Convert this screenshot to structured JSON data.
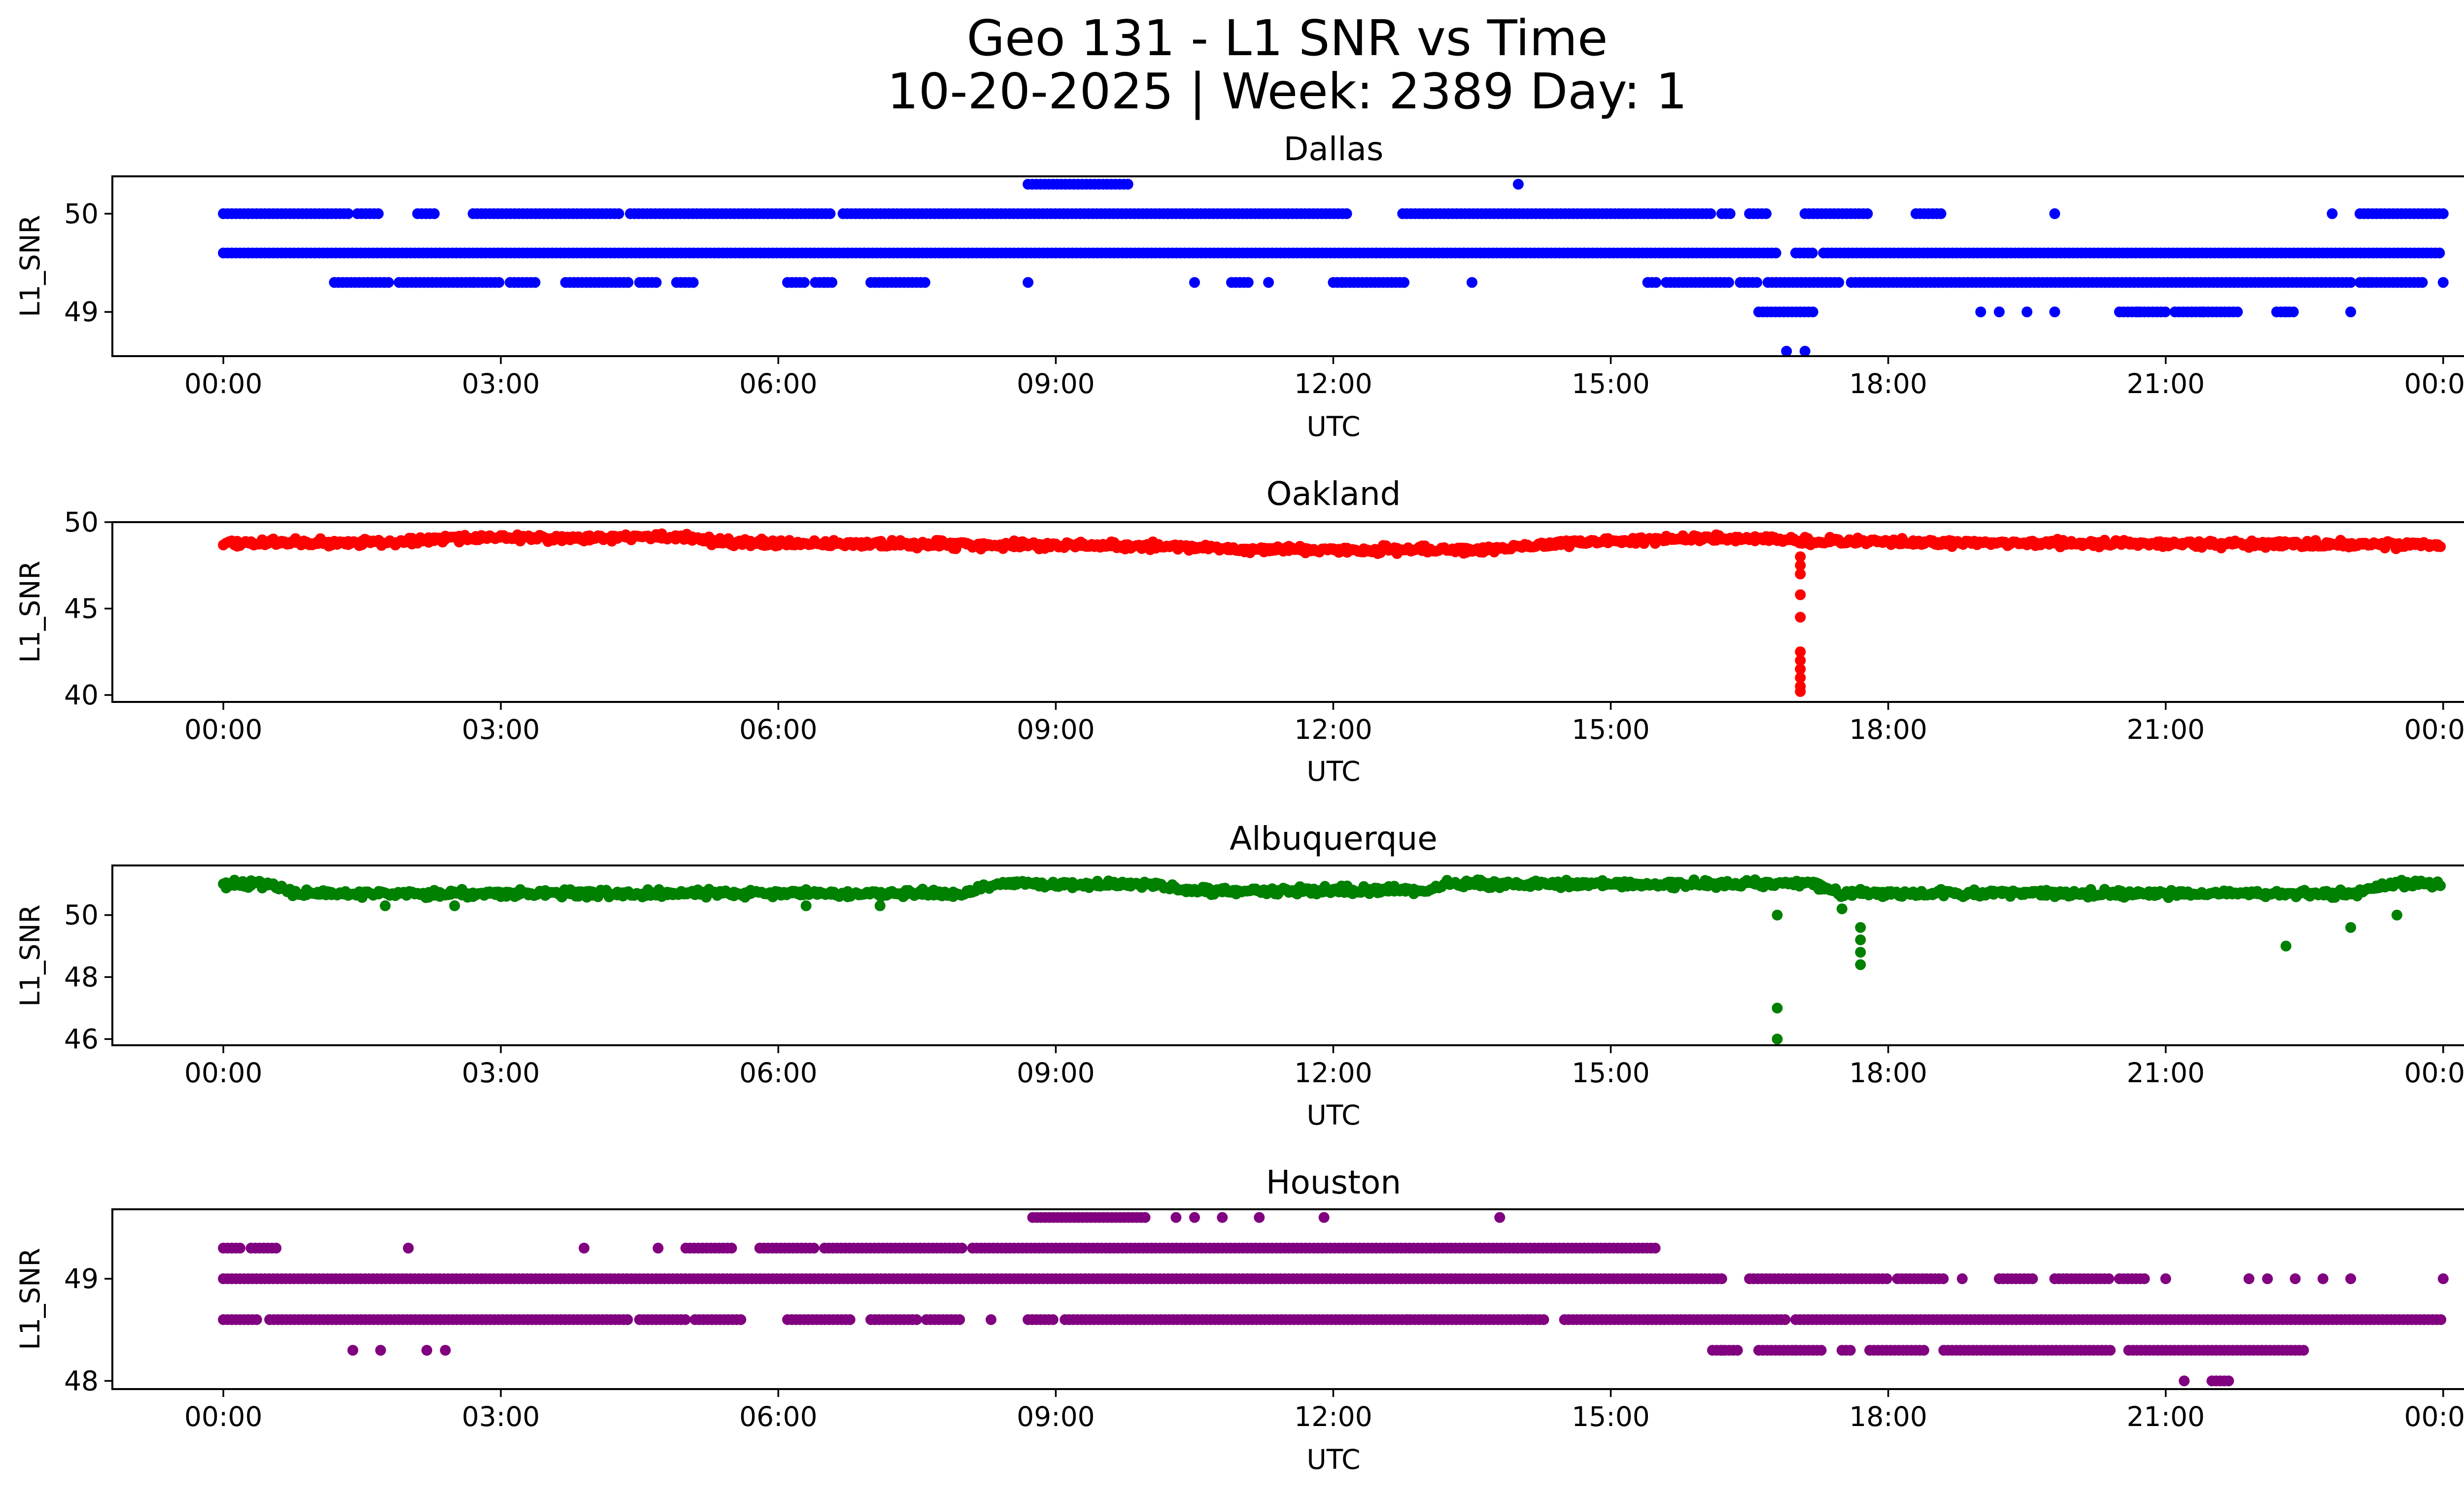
{
  "figure": {
    "title_line1": "Geo 131 - L1 SNR vs Time",
    "title_line2": "10-20-2025 | Week: 2389 Day: 1"
  },
  "chart_data": [
    {
      "type": "scatter",
      "title": "Dallas",
      "xlabel": "UTC",
      "ylabel": "L1_SNR",
      "color": "#0000ff",
      "x_unit": "hours",
      "xlim": [
        -1.2,
        25.2
      ],
      "ylim": [
        48.55,
        50.38
      ],
      "xticks": [
        0,
        3,
        6,
        9,
        12,
        15,
        18,
        21,
        24
      ],
      "xtick_labels": [
        "00:00",
        "03:00",
        "06:00",
        "09:00",
        "12:00",
        "15:00",
        "18:00",
        "21:00",
        "00:00"
      ],
      "yticks": [
        49,
        50
      ],
      "ytick_labels": [
        "49",
        "50"
      ],
      "series": [
        {
          "y": 50.0,
          "segments": [
            [
              0,
              1.35
            ],
            [
              1.45,
              1.7
            ],
            [
              2.1,
              2.3
            ],
            [
              2.7,
              4.3
            ],
            [
              4.4,
              6.6
            ],
            [
              6.7,
              12.15
            ],
            [
              12.75,
              16.1
            ],
            [
              16.2,
              16.3
            ],
            [
              16.5,
              16.7
            ],
            [
              17.1,
              17.8
            ],
            [
              18.3,
              18.6
            ]
          ],
          "points": [
            19.8,
            22.8
          ],
          "runs_end": [
            23.1,
            24.0
          ]
        },
        {
          "y": 49.6,
          "segments": [
            [
              0,
              16.8
            ],
            [
              17.0,
              17.2
            ],
            [
              17.3,
              24.0
            ]
          ],
          "points": []
        },
        {
          "y": 49.3,
          "segments": [
            [
              1.2,
              1.8
            ],
            [
              1.9,
              3.0
            ],
            [
              3.1,
              3.4
            ],
            [
              3.7,
              4.4
            ],
            [
              4.5,
              4.7
            ],
            [
              4.9,
              5.1
            ],
            [
              6.1,
              6.3
            ],
            [
              6.4,
              6.6
            ],
            [
              7.0,
              7.6
            ],
            [
              10.9,
              11.1
            ],
            [
              12.0,
              12.8
            ],
            [
              15.4,
              15.5
            ],
            [
              15.6,
              16.3
            ],
            [
              16.4,
              16.6
            ],
            [
              16.7,
              17.5
            ],
            [
              17.6,
              23.0
            ],
            [
              23.1,
              23.8
            ]
          ],
          "points": [
            2.7,
            6.5,
            8.7,
            10.5,
            11.3,
            12.1,
            13.5,
            23.2,
            24.0
          ]
        },
        {
          "y": 49.0,
          "segments": [
            [
              16.6,
              17.2
            ],
            [
              20.5,
              21.0
            ],
            [
              21.1,
              21.8
            ],
            [
              22.2,
              22.4
            ]
          ],
          "points": [
            19.0,
            19.2,
            19.5,
            19.8,
            20.7,
            21.4,
            22.3,
            23.0
          ]
        },
        {
          "y": 48.6,
          "segments": [],
          "points": [
            16.9,
            17.1
          ]
        },
        {
          "y": 50.3,
          "segments": [
            [
              8.7,
              9.8
            ]
          ],
          "points": [
            14.0
          ]
        }
      ]
    },
    {
      "type": "scatter",
      "title": "Oakland",
      "xlabel": "UTC",
      "ylabel": "L1_SNR",
      "color": "#ff0000",
      "x_unit": "hours",
      "xlim": [
        -1.2,
        25.2
      ],
      "ylim": [
        39.6,
        50.0
      ],
      "xticks": [
        0,
        3,
        6,
        9,
        12,
        15,
        18,
        21,
        24
      ],
      "xtick_labels": [
        "00:00",
        "03:00",
        "06:00",
        "09:00",
        "12:00",
        "15:00",
        "18:00",
        "21:00",
        "00:00"
      ],
      "yticks": [
        40,
        45,
        50
      ],
      "ytick_labels": [
        "40",
        "45",
        "50"
      ],
      "baseline": [
        [
          0,
          48.8
        ],
        [
          1.5,
          48.8
        ],
        [
          2.5,
          49.1
        ],
        [
          5.0,
          49.1
        ],
        [
          5.5,
          48.8
        ],
        [
          8.0,
          48.7
        ],
        [
          10.5,
          48.6
        ],
        [
          11.0,
          48.4
        ],
        [
          13.5,
          48.4
        ],
        [
          14.5,
          48.8
        ],
        [
          16.0,
          49.1
        ],
        [
          17.0,
          48.9
        ],
        [
          19.0,
          48.8
        ],
        [
          24.0,
          48.7
        ]
      ],
      "dropout": {
        "x": 17.05,
        "values": [
          48.0,
          47.5,
          47.0,
          45.8,
          44.5,
          42.5,
          42.0,
          41.5,
          41.0,
          40.5,
          40.2
        ]
      }
    },
    {
      "type": "scatter",
      "title": "Albuquerque",
      "xlabel": "UTC",
      "ylabel": "L1_SNR",
      "color": "#008000",
      "x_unit": "hours",
      "xlim": [
        -1.2,
        25.2
      ],
      "ylim": [
        45.8,
        51.6
      ],
      "xticks": [
        0,
        3,
        6,
        9,
        12,
        15,
        18,
        21,
        24
      ],
      "xtick_labels": [
        "00:00",
        "03:00",
        "06:00",
        "09:00",
        "12:00",
        "15:00",
        "18:00",
        "21:00",
        "00:00"
      ],
      "yticks": [
        46,
        48,
        50
      ],
      "ytick_labels": [
        "46",
        "48",
        "50"
      ],
      "baseline": [
        [
          0,
          51.0
        ],
        [
          0.5,
          51.0
        ],
        [
          0.8,
          50.7
        ],
        [
          8.0,
          50.7
        ],
        [
          8.3,
          51.0
        ],
        [
          10.0,
          51.0
        ],
        [
          10.5,
          50.8
        ],
        [
          13.0,
          50.8
        ],
        [
          13.2,
          51.0
        ],
        [
          17.2,
          51.0
        ],
        [
          17.5,
          50.7
        ],
        [
          23.0,
          50.7
        ],
        [
          23.4,
          51.0
        ],
        [
          24.0,
          51.0
        ]
      ],
      "outliers": [
        [
          16.8,
          50.0
        ],
        [
          16.8,
          47.0
        ],
        [
          16.8,
          46.0
        ],
        [
          17.5,
          50.2
        ],
        [
          17.7,
          49.6
        ],
        [
          17.7,
          49.2
        ],
        [
          17.7,
          48.8
        ],
        [
          17.7,
          48.4
        ],
        [
          22.3,
          49.0
        ],
        [
          23.0,
          49.6
        ],
        [
          23.5,
          50.0
        ],
        [
          1.75,
          50.3
        ],
        [
          6.3,
          50.3
        ],
        [
          7.1,
          50.3
        ],
        [
          2.5,
          50.3
        ]
      ]
    },
    {
      "type": "scatter",
      "title": "Houston",
      "xlabel": "UTC",
      "ylabel": "L1_SNR",
      "color": "#800080",
      "x_unit": "hours",
      "xlim": [
        -1.2,
        25.2
      ],
      "ylim": [
        47.92,
        49.68
      ],
      "xticks": [
        0,
        3,
        6,
        9,
        12,
        15,
        18,
        21,
        24
      ],
      "xtick_labels": [
        "00:00",
        "03:00",
        "06:00",
        "09:00",
        "12:00",
        "15:00",
        "18:00",
        "21:00",
        "00:00"
      ],
      "yticks": [
        48,
        49
      ],
      "ytick_labels": [
        "48",
        "49"
      ],
      "series": [
        {
          "y": 49.6,
          "segments": [
            [
              8.75,
              10.0
            ]
          ],
          "points": [
            10.3,
            10.5,
            10.8,
            11.2,
            11.9,
            13.8
          ]
        },
        {
          "y": 49.3,
          "segments": [
            [
              0,
              0.2
            ],
            [
              0.3,
              0.6
            ],
            [
              5.0,
              5.5
            ],
            [
              5.8,
              6.4
            ],
            [
              6.5,
              8.0
            ],
            [
              8.1,
              15.5
            ]
          ],
          "points": [
            2.0,
            3.9,
            4.7
          ]
        },
        {
          "y": 49.0,
          "segments": [
            [
              0,
              16.2
            ],
            [
              16.5,
              18.0
            ],
            [
              18.1,
              18.6
            ],
            [
              19.2,
              19.6
            ],
            [
              19.8,
              20.4
            ],
            [
              20.5,
              20.8
            ]
          ],
          "points": [
            18.8,
            21.0,
            21.9,
            22.1,
            22.4,
            22.7,
            23.0,
            24.0
          ]
        },
        {
          "y": 48.6,
          "segments": [
            [
              0,
              0.4
            ],
            [
              0.5,
              4.4
            ],
            [
              4.5,
              5.0
            ],
            [
              5.1,
              5.6
            ],
            [
              6.1,
              6.8
            ],
            [
              7.0,
              7.5
            ],
            [
              7.6,
              8.0
            ],
            [
              8.7,
              9.0
            ],
            [
              9.1,
              14.3
            ],
            [
              14.5,
              16.9
            ],
            [
              17.0,
              24.0
            ]
          ],
          "points": [
            8.3,
            10.4,
            12.8,
            13.1,
            14.1
          ]
        },
        {
          "y": 48.3,
          "segments": [
            [
              16.1,
              16.4
            ],
            [
              16.6,
              17.3
            ],
            [
              17.5,
              17.6
            ],
            [
              17.8,
              18.4
            ],
            [
              18.6,
              20.4
            ],
            [
              20.6,
              22.5
            ]
          ],
          "points": [
            1.4,
            1.7,
            2.2,
            2.4,
            16.2,
            17.0
          ]
        },
        {
          "y": 48.0,
          "segments": [
            [
              21.5,
              21.7
            ]
          ],
          "points": [
            21.2
          ]
        }
      ]
    }
  ]
}
